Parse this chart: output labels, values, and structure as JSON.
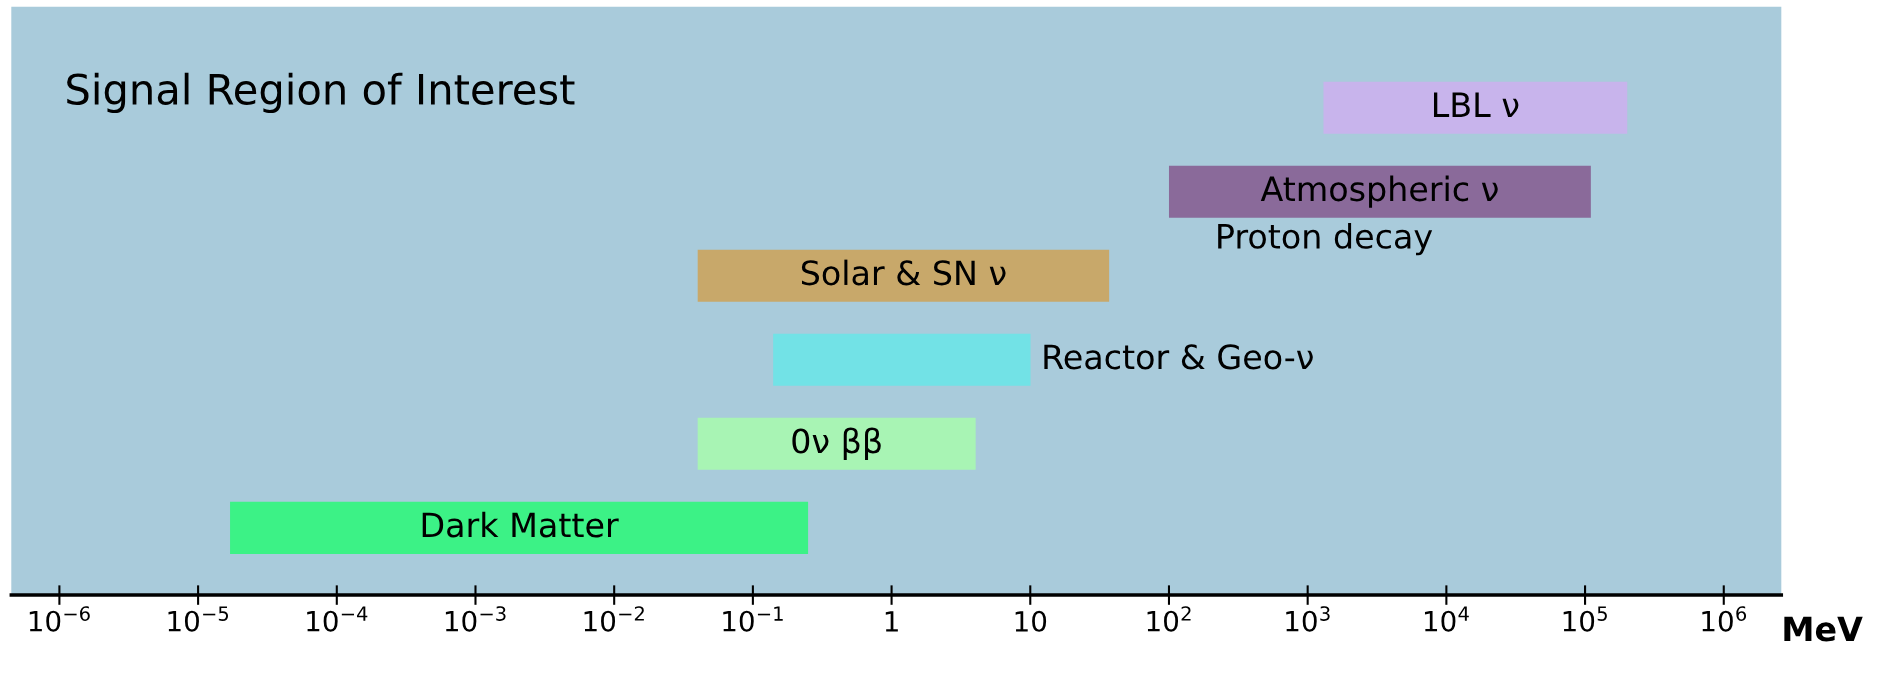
{
  "chart_data": {
    "type": "bar",
    "orientation": "horizontal",
    "title": "Signal Region of Interest",
    "xlabel": "MeV",
    "log": "x",
    "categories": [
      "LBL ν",
      "Atmospheric ν",
      "Solar & SN ν",
      "Reactor & Geo-ν",
      "0ν ββ",
      "Dark Matter"
    ],
    "base": [
      1300,
      100,
      0.04,
      0.14,
      0.04,
      1.7e-05
    ],
    "values": [
      200000,
      110000,
      37,
      9.9,
      4,
      0.25
    ],
    "colors": [
      "#c8b4ec",
      "#8a6a9a",
      "#c8a86a",
      "#72e2e6",
      "#a8f4b4",
      "#3cf286"
    ],
    "xlim": [
      4.5e-07,
      2600000.0
    ],
    "xticks": [
      {
        "value": 1e-06,
        "label": "10$^{−6}$"
      },
      {
        "value": 1e-05,
        "label": "10$^{−5}$"
      },
      {
        "value": 0.0001,
        "label": "10$^{−4}$"
      },
      {
        "value": 0.001,
        "label": "10$^{−3}$"
      },
      {
        "value": 0.01,
        "label": "10$^{−2}$"
      },
      {
        "value": 0.1,
        "label": "10$^{−1}$"
      },
      1,
      10,
      {
        "value": 100,
        "label": "10$^{2}$"
      },
      {
        "value": 1000,
        "label": "10$^{3}$"
      },
      {
        "value": 10000,
        "label": "10$^{4}$"
      },
      {
        "value": 100000,
        "label": "10$^{5}$"
      },
      {
        "value": 1000000,
        "label": "10$^{6}$"
      }
    ],
    "tick_labels": "x",
    "grid": false,
    "annotations": [
      "Proton decay"
    ]
  }
}
